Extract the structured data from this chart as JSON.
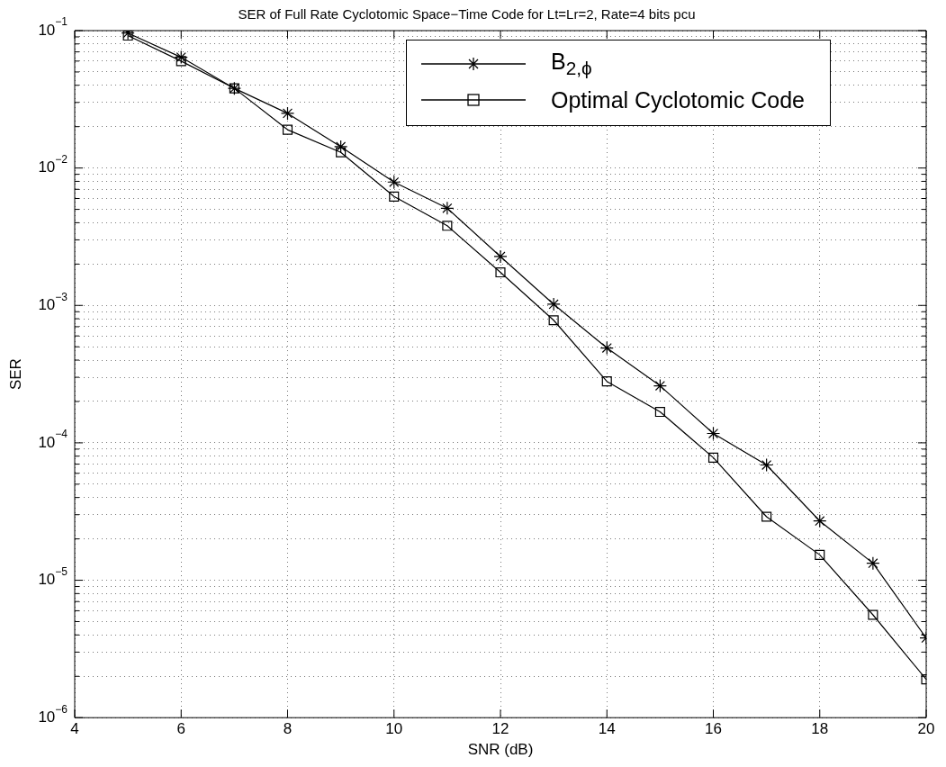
{
  "chart_data": {
    "type": "line",
    "title": "SER of Full Rate Cyclotomic Space−Time Code for Lt=Lr=2, Rate=4 bits pcu",
    "xlabel": "SNR (dB)",
    "ylabel": "SER",
    "x": [
      5,
      6,
      7,
      8,
      9,
      10,
      11,
      12,
      13,
      14,
      15,
      16,
      17,
      18,
      19,
      20
    ],
    "series": [
      {
        "name": "B$_{2,ϕ}$",
        "color": "#000000",
        "marker": "cross",
        "values": [
          0.096,
          0.064,
          0.038,
          0.025,
          0.0143,
          0.0079,
          0.0051,
          0.00227,
          0.00102,
          0.00049,
          0.00026,
          0.000117,
          6.9e-05,
          2.7e-05,
          1.33e-05,
          3.8e-06
        ]
      },
      {
        "name": "Optimal Cyclotomic Code",
        "color": "#000000",
        "marker": "square",
        "values": [
          0.092,
          0.06,
          0.038,
          0.019,
          0.013,
          0.0062,
          0.0038,
          0.00174,
          0.00078,
          0.00028,
          0.000168,
          7.8e-05,
          2.9e-05,
          1.53e-05,
          5.6e-06,
          1.9e-06
        ]
      }
    ],
    "log": "y",
    "xlim": [
      4,
      20
    ],
    "xticks": [
      4,
      6,
      8,
      10,
      12,
      14,
      16,
      18,
      20
    ],
    "ylim": [
      1e-06,
      0.1
    ],
    "yticks": [
      {
        "value": 1e-06,
        "label": "10$^{−6}$"
      },
      {
        "value": 2e-06,
        "label": null
      },
      {
        "value": 3e-06,
        "label": null
      },
      {
        "value": 4e-06,
        "label": null
      },
      {
        "value": 5e-06,
        "label": null
      },
      {
        "value": 6e-06,
        "label": null
      },
      {
        "value": 7e-06,
        "label": null
      },
      {
        "value": 8e-06,
        "label": null
      },
      {
        "value": 9e-06,
        "label": null
      },
      {
        "value": 1e-05,
        "label": "10$^{−5}$"
      },
      {
        "value": 2e-05,
        "label": null
      },
      {
        "value": 3e-05,
        "label": null
      },
      {
        "value": 4e-05,
        "label": null
      },
      {
        "value": 5e-05,
        "label": null
      },
      {
        "value": 6e-05,
        "label": null
      },
      {
        "value": 7e-05,
        "label": null
      },
      {
        "value": 8e-05,
        "label": null
      },
      {
        "value": 9e-05,
        "label": null
      },
      {
        "value": 0.0001,
        "label": "10$^{−4}$"
      },
      {
        "value": 0.0002,
        "label": null
      },
      {
        "value": 0.0003,
        "label": null
      },
      {
        "value": 0.0004,
        "label": null
      },
      {
        "value": 0.0005,
        "label": null
      },
      {
        "value": 0.0006,
        "label": null
      },
      {
        "value": 0.0007,
        "label": null
      },
      {
        "value": 0.0008,
        "label": null
      },
      {
        "value": 0.0009,
        "label": null
      },
      {
        "value": 0.001,
        "label": "10$^{−3}$"
      },
      {
        "value": 0.002,
        "label": null
      },
      {
        "value": 0.003,
        "label": null
      },
      {
        "value": 0.004,
        "label": null
      },
      {
        "value": 0.005,
        "label": null
      },
      {
        "value": 0.006,
        "label": null
      },
      {
        "value": 0.007,
        "label": null
      },
      {
        "value": 0.008,
        "label": null
      },
      {
        "value": 0.009,
        "label": null
      },
      {
        "value": 0.01,
        "label": "10$^{−2}$"
      },
      {
        "value": 0.02,
        "label": null
      },
      {
        "value": 0.03,
        "label": null
      },
      {
        "value": 0.04,
        "label": null
      },
      {
        "value": 0.05,
        "label": null
      },
      {
        "value": 0.06,
        "label": null
      },
      {
        "value": 0.07,
        "label": null
      },
      {
        "value": 0.08,
        "label": null
      },
      {
        "value": 0.09,
        "label": null
      },
      {
        "value": 0.1,
        "label": "10$^{−1}$"
      }
    ],
    "grid": true,
    "legend": "top right",
    "line_style": "solid"
  }
}
